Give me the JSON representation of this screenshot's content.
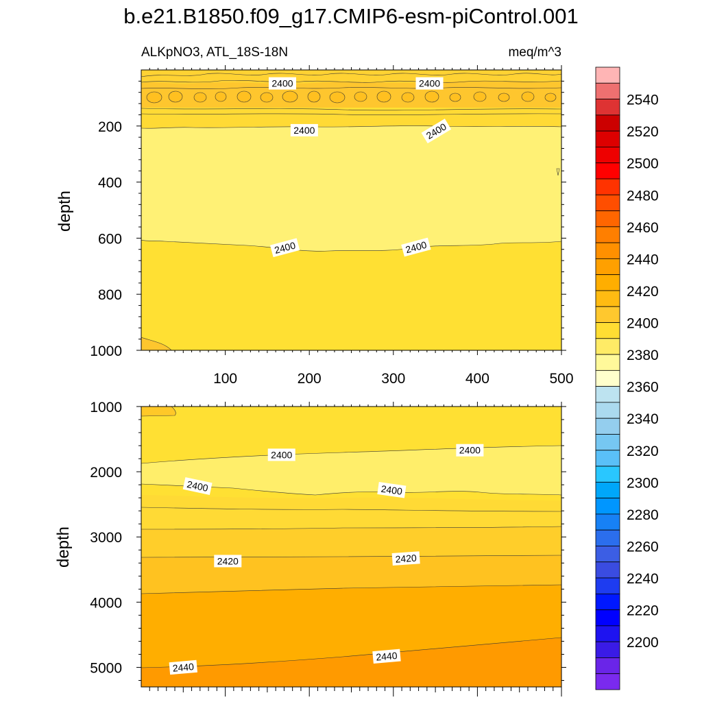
{
  "title": "b.e21.B1850.f09_g17.CMIP6-esm-piControl.001",
  "chart_data": [
    {
      "type": "heatmap",
      "panel": "upper",
      "left_label": "ALKpNO3, ATL_18S-18N",
      "right_label": "meq/m^3",
      "ylabel": "depth",
      "xlabel": "",
      "xlim": [
        0,
        500
      ],
      "ylim": [
        1000,
        0
      ],
      "xticks": [
        100,
        200,
        300,
        400,
        500
      ],
      "yticks": [
        200,
        400,
        600,
        800,
        1000
      ],
      "contour_labels": [
        {
          "text": "2400",
          "x": 168,
          "y": 48
        },
        {
          "text": "2400",
          "x": 343,
          "y": 48
        },
        {
          "text": "2400",
          "x": 194,
          "y": 215
        },
        {
          "text": "2400",
          "x": 351,
          "y": 218,
          "rotate": -31
        },
        {
          "text": "2400",
          "x": 171,
          "y": 634,
          "rotate": -15
        },
        {
          "text": "2400",
          "x": 327,
          "y": 632,
          "rotate": -15
        }
      ],
      "bands": [
        {
          "color": "#FEC52F",
          "y_top": 0,
          "y_bottom": 130,
          "note": "2410-2420"
        },
        {
          "color": "#FEE035",
          "y_top": 120,
          "y_bottom": 220,
          "note": "2400-2410"
        },
        {
          "color": "#FFEF74",
          "y_top": 215,
          "y_bottom": 630,
          "note": "2390-2400"
        },
        {
          "color": "#FEE035",
          "y_top": 630,
          "y_bottom": 1000,
          "note": "2400-2410"
        }
      ]
    },
    {
      "type": "heatmap",
      "panel": "lower",
      "ylabel": "depth",
      "xlabel": "",
      "xlim": [
        0,
        500
      ],
      "ylim": [
        5300,
        1000
      ],
      "yticks": [
        1000,
        2000,
        3000,
        4000,
        5000
      ],
      "contour_labels": [
        {
          "text": "2400",
          "x": 167,
          "y": 1740
        },
        {
          "text": "2400",
          "x": 391,
          "y": 1670
        },
        {
          "text": "2400",
          "x": 67,
          "y": 2220,
          "rotate": 12
        },
        {
          "text": "2400",
          "x": 298,
          "y": 2280,
          "rotate": 8
        },
        {
          "text": "2420",
          "x": 103,
          "y": 3370
        },
        {
          "text": "2420",
          "x": 315,
          "y": 3330,
          "rotate": -4
        },
        {
          "text": "2440",
          "x": 50,
          "y": 5000,
          "rotate": -5
        },
        {
          "text": "2440",
          "x": 292,
          "y": 4830,
          "rotate": -5
        }
      ]
    }
  ],
  "colorbar": {
    "colors": [
      "#FFB5B5",
      "#EE7070",
      "#DE3333",
      "#CC0000",
      "#DD0000",
      "#EE0000",
      "#FF0000",
      "#FF3300",
      "#FF4E00",
      "#FF6600",
      "#FF7F00",
      "#FF9000",
      "#FFA000",
      "#FFAE00",
      "#FFBB12",
      "#FFC82E",
      "#FFDD33",
      "#FFEB66",
      "#FFF99A",
      "#FFFFCC",
      "#BDE3F0",
      "#ABDAEF",
      "#94CEEE",
      "#76C7F2",
      "#5AC0F8",
      "#29C7FF",
      "#00A7F9",
      "#0096FF",
      "#1781F5",
      "#2B6EED",
      "#3C5EE4",
      "#3A4CE1",
      "#1E3CF0",
      "#0018FF",
      "#0000FF",
      "#1E13F0",
      "#3A1BE6",
      "#6A25E8",
      "#7A2AEE"
    ],
    "tick_labels": [
      "2540",
      "2520",
      "2500",
      "2480",
      "2460",
      "2440",
      "2420",
      "2400",
      "2380",
      "2360",
      "2340",
      "2320",
      "2300",
      "2280",
      "2260",
      "2240",
      "2220",
      "2200"
    ]
  }
}
